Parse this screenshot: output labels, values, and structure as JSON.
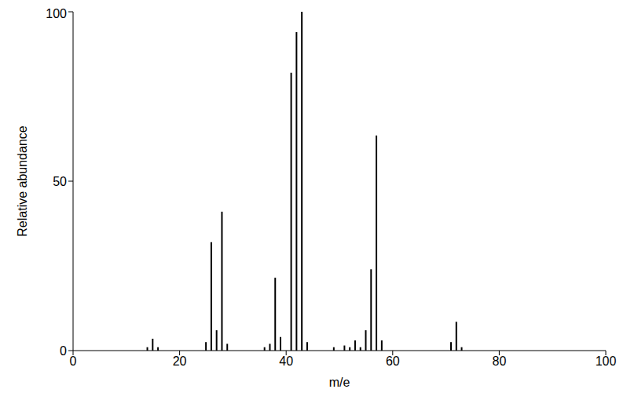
{
  "chart_data": {
    "type": "bar",
    "x_label": "m/e",
    "y_label": "Relative abundance",
    "x": [
      14,
      15,
      16,
      25,
      26,
      27,
      28,
      29,
      36,
      37,
      38,
      39,
      41,
      42,
      43,
      44,
      49,
      51,
      52,
      53,
      54,
      55,
      56,
      57,
      58,
      71,
      72,
      73
    ],
    "values": [
      1,
      3.5,
      1,
      2.5,
      32,
      6,
      41,
      2,
      1,
      2,
      21.5,
      4,
      82,
      94,
      100,
      2.5,
      1,
      1.5,
      1,
      3,
      1,
      6,
      24,
      63.5,
      3,
      2.5,
      8.5,
      1
    ],
    "color": "#000000",
    "xlim": [
      0,
      100
    ],
    "ylim": [
      0,
      100
    ],
    "xticks": [
      0,
      20,
      40,
      60,
      80,
      100
    ],
    "yticks": [
      0,
      50,
      100
    ],
    "grid": false
  }
}
